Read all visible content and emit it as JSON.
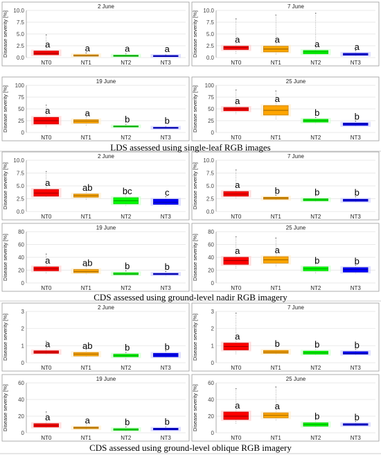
{
  "captions": [
    "LDS assessed using single-leaf RGB images",
    "CDS assessed using ground-level nadir RGB imagery",
    "CDS assessed using ground-level oblique RGB imagery"
  ],
  "chart_data": [
    {
      "type": "box",
      "group": "LDS",
      "title": "2 June",
      "ylabel": "Disease severity [%]",
      "ylim": [
        0,
        10
      ],
      "yticks": [
        0,
        2.5,
        5,
        7.5,
        10
      ],
      "yticklabels": [
        "0.0",
        "2.5",
        "5.0",
        "7.5",
        "10.0"
      ],
      "categories": [
        "NT0",
        "NT1",
        "NT2",
        "NT3"
      ],
      "colors": [
        "#ff0000",
        "#ffa500",
        "#00ff00",
        "#0000ff"
      ],
      "boxes": [
        {
          "q1": 0.6,
          "median": 0.9,
          "q3": 1.4,
          "min": 0.5,
          "max": 4.8
        },
        {
          "q1": 0.3,
          "median": 0.4,
          "q3": 0.6,
          "min": 0.2,
          "max": 1.0
        },
        {
          "q1": 0.25,
          "median": 0.35,
          "q3": 0.5,
          "min": 0.2,
          "max": 0.8
        },
        {
          "q1": 0.2,
          "median": 0.3,
          "q3": 0.45,
          "min": 0.1,
          "max": 0.6
        }
      ],
      "letters": [
        "a",
        "a",
        "a",
        "a"
      ]
    },
    {
      "type": "box",
      "group": "LDS",
      "title": "7 June",
      "ylabel": "Disease severity [%]",
      "ylim": [
        0,
        10
      ],
      "yticks": [
        0,
        2.5,
        5,
        7.5,
        10
      ],
      "yticklabels": [
        "0.0",
        "2.5",
        "5.0",
        "7.5",
        "10.0"
      ],
      "categories": [
        "NT0",
        "NT1",
        "NT2",
        "NT3"
      ],
      "colors": [
        "#ff0000",
        "#ffa500",
        "#00ff00",
        "#0000ff"
      ],
      "boxes": [
        {
          "q1": 1.7,
          "median": 2.1,
          "q3": 2.4,
          "min": 0.8,
          "max": 8.2
        },
        {
          "q1": 1.2,
          "median": 1.8,
          "q3": 2.4,
          "min": 0.5,
          "max": 9.0
        },
        {
          "q1": 0.8,
          "median": 1.2,
          "q3": 1.5,
          "min": 0.4,
          "max": 9.4
        },
        {
          "q1": 0.5,
          "median": 0.7,
          "q3": 0.9,
          "min": 0.3,
          "max": 1.5
        }
      ],
      "letters": [
        "a",
        "a",
        "a",
        "a"
      ]
    },
    {
      "type": "box",
      "group": "LDS",
      "title": "19 June",
      "ylabel": "Disease severity [%]",
      "ylim": [
        0,
        100
      ],
      "yticks": [
        0,
        25,
        50,
        75,
        100
      ],
      "yticklabels": [
        "0",
        "25",
        "50",
        "75",
        "100"
      ],
      "categories": [
        "NT0",
        "NT1",
        "NT2",
        "NT3"
      ],
      "colors": [
        "#ff0000",
        "#ffa500",
        "#00ff00",
        "#0000ff"
      ],
      "boxes": [
        {
          "q1": 18,
          "median": 25,
          "q3": 32,
          "min": 10,
          "max": 58
        },
        {
          "q1": 20,
          "median": 24,
          "q3": 27,
          "min": 14,
          "max": 40
        },
        {
          "q1": 12,
          "median": 13,
          "q3": 14,
          "min": 10,
          "max": 17
        },
        {
          "q1": 9,
          "median": 10,
          "q3": 11,
          "min": 8,
          "max": 13
        }
      ],
      "letters": [
        "a",
        "a",
        "b",
        "b"
      ]
    },
    {
      "type": "box",
      "group": "LDS",
      "title": "25 June",
      "ylabel": "Disease severity [%]",
      "ylim": [
        0,
        100
      ],
      "yticks": [
        0,
        25,
        50,
        75,
        100
      ],
      "yticklabels": [
        "0",
        "25",
        "50",
        "75",
        "100"
      ],
      "categories": [
        "NT0",
        "NT1",
        "NT2",
        "NT3"
      ],
      "colors": [
        "#ff0000",
        "#ffa500",
        "#00ff00",
        "#0000ff"
      ],
      "boxes": [
        {
          "q1": 46,
          "median": 50,
          "q3": 53,
          "min": 38,
          "max": 90
        },
        {
          "q1": 37,
          "median": 47,
          "q3": 57,
          "min": 28,
          "max": 88
        },
        {
          "q1": 22,
          "median": 25,
          "q3": 28,
          "min": 18,
          "max": 32
        },
        {
          "q1": 15,
          "median": 18,
          "q3": 20,
          "min": 12,
          "max": 24
        }
      ],
      "letters": [
        "a",
        "a",
        "b",
        "b"
      ]
    },
    {
      "type": "box",
      "group": "CDS nadir",
      "title": "2 June",
      "ylabel": "Disease severity [%]",
      "ylim": [
        0,
        10
      ],
      "yticks": [
        0,
        2.5,
        5,
        7.5,
        10
      ],
      "yticklabels": [
        "0.0",
        "2.5",
        "5.0",
        "7.5",
        "10.0"
      ],
      "categories": [
        "NT0",
        "NT1",
        "NT2",
        "NT3"
      ],
      "colors": [
        "#ff0000",
        "#ffa500",
        "#00ff00",
        "#0000ff"
      ],
      "boxes": [
        {
          "q1": 3.0,
          "median": 3.6,
          "q3": 4.3,
          "min": 2.7,
          "max": 7.8
        },
        {
          "q1": 2.8,
          "median": 3.1,
          "q3": 3.4,
          "min": 2.3,
          "max": 4.1
        },
        {
          "q1": 1.5,
          "median": 2.1,
          "q3": 2.7,
          "min": 1.1,
          "max": 4.3
        },
        {
          "q1": 1.4,
          "median": 1.8,
          "q3": 2.4,
          "min": 1.2,
          "max": 2.9
        }
      ],
      "letters": [
        "a",
        "ab",
        "bc",
        "c"
      ]
    },
    {
      "type": "box",
      "group": "CDS nadir",
      "title": "7 June",
      "ylabel": "Disease severity [%]",
      "ylim": [
        0,
        10
      ],
      "yticks": [
        0,
        2.5,
        5,
        7.5,
        10
      ],
      "yticklabels": [
        "0.0",
        "2.5",
        "5.0",
        "7.5",
        "10.0"
      ],
      "categories": [
        "NT0",
        "NT1",
        "NT2",
        "NT3"
      ],
      "colors": [
        "#ff0000",
        "#ffa500",
        "#00ff00",
        "#0000ff"
      ],
      "boxes": [
        {
          "q1": 3.0,
          "median": 3.4,
          "q3": 3.9,
          "min": 2.6,
          "max": 8.1
        },
        {
          "q1": 2.4,
          "median": 2.6,
          "q3": 2.8,
          "min": 2.2,
          "max": 3.2
        },
        {
          "q1": 2.1,
          "median": 2.3,
          "q3": 2.5,
          "min": 1.9,
          "max": 3.1
        },
        {
          "q1": 2.0,
          "median": 2.2,
          "q3": 2.4,
          "min": 1.8,
          "max": 2.9
        }
      ],
      "letters": [
        "a",
        "b",
        "b",
        "b"
      ]
    },
    {
      "type": "box",
      "group": "CDS nadir",
      "title": "19 June",
      "ylabel": "Disease severity [%]",
      "ylim": [
        0,
        80
      ],
      "yticks": [
        0,
        20,
        40,
        60,
        80
      ],
      "yticklabels": [
        "0",
        "20",
        "40",
        "60",
        "80"
      ],
      "categories": [
        "NT0",
        "NT1",
        "NT2",
        "NT3"
      ],
      "colors": [
        "#ff0000",
        "#ffa500",
        "#00ff00",
        "#0000ff"
      ],
      "boxes": [
        {
          "q1": 19,
          "median": 22,
          "q3": 25,
          "min": 15,
          "max": 45
        },
        {
          "q1": 16,
          "median": 18,
          "q3": 21,
          "min": 13,
          "max": 26
        },
        {
          "q1": 13,
          "median": 14,
          "q3": 16,
          "min": 11,
          "max": 19
        },
        {
          "q1": 13,
          "median": 14,
          "q3": 15,
          "min": 10,
          "max": 18
        }
      ],
      "letters": [
        "a",
        "ab",
        "b",
        "b"
      ]
    },
    {
      "type": "box",
      "group": "CDS nadir",
      "title": "25 June",
      "ylabel": "Disease severity [%]",
      "ylim": [
        0,
        80
      ],
      "yticks": [
        0,
        20,
        40,
        60,
        80
      ],
      "yticklabels": [
        "0",
        "20",
        "40",
        "60",
        "80"
      ],
      "categories": [
        "NT0",
        "NT1",
        "NT2",
        "NT3"
      ],
      "colors": [
        "#ff0000",
        "#ffa500",
        "#00ff00",
        "#0000ff"
      ],
      "boxes": [
        {
          "q1": 29,
          "median": 35,
          "q3": 40,
          "min": 22,
          "max": 72
        },
        {
          "q1": 31,
          "median": 36,
          "q3": 41,
          "min": 25,
          "max": 70
        },
        {
          "q1": 19,
          "median": 22,
          "q3": 25,
          "min": 15,
          "max": 30
        },
        {
          "q1": 17,
          "median": 21,
          "q3": 24,
          "min": 14,
          "max": 28
        }
      ],
      "letters": [
        "a",
        "a",
        "b",
        "b"
      ]
    },
    {
      "type": "box",
      "group": "CDS oblique",
      "title": "2 June",
      "ylabel": "Disease severity [%]",
      "ylim": [
        0,
        3
      ],
      "yticks": [
        0,
        1,
        2,
        3
      ],
      "yticklabels": [
        "0",
        "1",
        "2",
        "3"
      ],
      "categories": [
        "NT0",
        "NT1",
        "NT2",
        "NT3"
      ],
      "colors": [
        "#ff0000",
        "#ffa500",
        "#00ff00",
        "#0000ff"
      ],
      "boxes": [
        {
          "q1": 0.55,
          "median": 0.62,
          "q3": 0.7,
          "min": 0.45,
          "max": 1.25
        },
        {
          "q1": 0.4,
          "median": 0.5,
          "q3": 0.6,
          "min": 0.3,
          "max": 0.8
        },
        {
          "q1": 0.35,
          "median": 0.42,
          "q3": 0.5,
          "min": 0.15,
          "max": 0.6
        },
        {
          "q1": 0.35,
          "median": 0.45,
          "q3": 0.55,
          "min": 0.3,
          "max": 0.7
        }
      ],
      "letters": [
        "a",
        "ab",
        "b",
        "b"
      ]
    },
    {
      "type": "box",
      "group": "CDS oblique",
      "title": "7 June",
      "ylabel": "Disease severity [%]",
      "ylim": [
        0,
        3
      ],
      "yticks": [
        0,
        1,
        2,
        3
      ],
      "yticklabels": [
        "0",
        "1",
        "2",
        "3"
      ],
      "categories": [
        "NT0",
        "NT1",
        "NT2",
        "NT3"
      ],
      "colors": [
        "#ff0000",
        "#ffa500",
        "#00ff00",
        "#0000ff"
      ],
      "boxes": [
        {
          "q1": 0.75,
          "median": 0.95,
          "q3": 1.15,
          "min": 0.5,
          "max": 2.9
        },
        {
          "q1": 0.55,
          "median": 0.62,
          "q3": 0.72,
          "min": 0.45,
          "max": 1.0
        },
        {
          "q1": 0.5,
          "median": 0.58,
          "q3": 0.68,
          "min": 0.4,
          "max": 0.9
        },
        {
          "q1": 0.5,
          "median": 0.55,
          "q3": 0.65,
          "min": 0.4,
          "max": 0.8
        }
      ],
      "letters": [
        "a",
        "b",
        "b",
        "b"
      ]
    },
    {
      "type": "box",
      "group": "CDS oblique",
      "title": "19 June",
      "ylabel": "Disease severity [%]",
      "ylim": [
        0,
        60
      ],
      "yticks": [
        0,
        20,
        40,
        60
      ],
      "yticklabels": [
        "0",
        "20",
        "40",
        "60"
      ],
      "categories": [
        "NT0",
        "NT1",
        "NT2",
        "NT3"
      ],
      "colors": [
        "#ff0000",
        "#ffa500",
        "#00ff00",
        "#0000ff"
      ],
      "boxes": [
        {
          "q1": 7,
          "median": 9,
          "q3": 11,
          "min": 5,
          "max": 25
        },
        {
          "q1": 5,
          "median": 6,
          "q3": 7,
          "min": 4,
          "max": 12
        },
        {
          "q1": 3,
          "median": 4,
          "q3": 5,
          "min": 2,
          "max": 7
        },
        {
          "q1": 3.5,
          "median": 4.5,
          "q3": 5.5,
          "min": 3,
          "max": 7
        }
      ],
      "letters": [
        "a",
        "a",
        "b",
        "b"
      ]
    },
    {
      "type": "box",
      "group": "CDS oblique",
      "title": "25 June",
      "ylabel": "Disease severity [%]",
      "ylim": [
        0,
        60
      ],
      "yticks": [
        0,
        20,
        40,
        60
      ],
      "yticklabels": [
        "0",
        "20",
        "40",
        "60"
      ],
      "categories": [
        "NT0",
        "NT1",
        "NT2",
        "NT3"
      ],
      "colors": [
        "#ff0000",
        "#ffa500",
        "#00ff00",
        "#0000ff"
      ],
      "boxes": [
        {
          "q1": 16,
          "median": 20,
          "q3": 25,
          "min": 10,
          "max": 53
        },
        {
          "q1": 18,
          "median": 21,
          "q3": 24,
          "min": 14,
          "max": 55
        },
        {
          "q1": 8,
          "median": 10,
          "q3": 12,
          "min": 6,
          "max": 16
        },
        {
          "q1": 9,
          "median": 10,
          "q3": 11,
          "min": 7,
          "max": 14
        }
      ],
      "letters": [
        "a",
        "a",
        "b",
        "b"
      ]
    }
  ]
}
